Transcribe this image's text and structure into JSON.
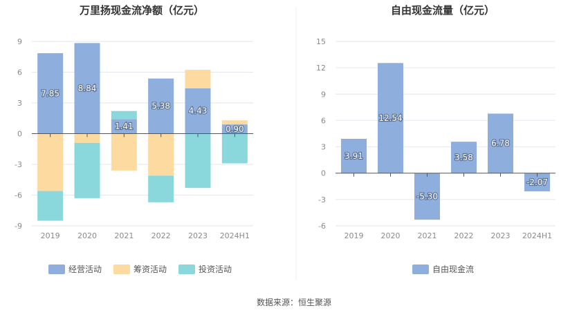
{
  "source_text": "数据来源：恒生聚源",
  "chart_data": [
    {
      "type": "bar",
      "stacked": true,
      "title": "万里扬现金流净额（亿元）",
      "categories": [
        "2019",
        "2020",
        "2021",
        "2022",
        "2023",
        "2024H1"
      ],
      "ylim": [
        -9,
        9
      ],
      "yticks": [
        -9,
        -6,
        -3,
        0,
        3,
        6,
        9
      ],
      "grid": true,
      "legend_position": "bottom",
      "series": [
        {
          "name": "经营活动",
          "color": "#8eaedd",
          "values": [
            7.85,
            8.84,
            1.41,
            5.38,
            4.43,
            0.9
          ]
        },
        {
          "name": "筹资活动",
          "color": "#fddaa0",
          "values": [
            -5.6,
            -0.9,
            -3.6,
            -4.1,
            1.8,
            0.4
          ]
        },
        {
          "name": "投资活动",
          "color": "#8ad8dc",
          "values": [
            -2.9,
            -5.4,
            0.8,
            -2.6,
            -5.3,
            -2.9
          ]
        }
      ],
      "data_labels": {
        "series": "经营活动",
        "texts": [
          "7.85",
          "8.84",
          "1.41",
          "5.38",
          "4.43",
          "0.90"
        ]
      }
    },
    {
      "type": "bar",
      "title": "自由现金流量（亿元）",
      "categories": [
        "2019",
        "2020",
        "2021",
        "2022",
        "2023",
        "2024H1"
      ],
      "ylim": [
        -6,
        15
      ],
      "yticks": [
        -6,
        -3,
        0,
        3,
        6,
        9,
        12,
        15
      ],
      "grid": true,
      "legend_position": "bottom",
      "series": [
        {
          "name": "自由现金流",
          "color": "#8eaedd",
          "values": [
            3.91,
            12.54,
            -5.3,
            3.58,
            6.78,
            -2.07
          ]
        }
      ],
      "data_labels": {
        "series": "自由现金流",
        "texts": [
          "3.91",
          "12.54",
          "-5.30",
          "3.58",
          "6.78",
          "-2.07"
        ]
      }
    }
  ]
}
